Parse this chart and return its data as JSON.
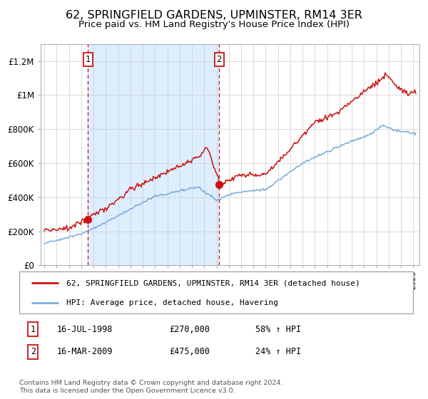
{
  "title": "62, SPRINGFIELD GARDENS, UPMINSTER, RM14 3ER",
  "subtitle": "Price paid vs. HM Land Registry's House Price Index (HPI)",
  "title_fontsize": 11.5,
  "subtitle_fontsize": 9.5,
  "legend_line1": "62, SPRINGFIELD GARDENS, UPMINSTER, RM14 3ER (detached house)",
  "legend_line2": "HPI: Average price, detached house, Havering",
  "footnote": "Contains HM Land Registry data © Crown copyright and database right 2024.\nThis data is licensed under the Open Government Licence v3.0.",
  "transaction1_date": "16-JUL-1998",
  "transaction1_price": "£270,000",
  "transaction1_hpi": "58% ↑ HPI",
  "transaction2_date": "16-MAR-2009",
  "transaction2_price": "£475,000",
  "transaction2_hpi": "24% ↑ HPI",
  "xmin": 1994.7,
  "xmax": 2025.5,
  "ymin": 0,
  "ymax": 1300000,
  "hpi_color": "#7aacdc",
  "price_color": "#cc1111",
  "shade_color": "#ddeeff",
  "vline_color": "#cc1111",
  "marker1_x": 1998.54,
  "marker1_y": 270000,
  "marker2_x": 2009.21,
  "marker2_y": 475000,
  "shade_x1": 1998.54,
  "shade_x2": 2009.21,
  "yticks": [
    0,
    200000,
    400000,
    600000,
    800000,
    1000000,
    1200000
  ],
  "ylabels": [
    "£0",
    "£200K",
    "£400K",
    "£600K",
    "£800K",
    "£1M",
    "£1.2M"
  ]
}
